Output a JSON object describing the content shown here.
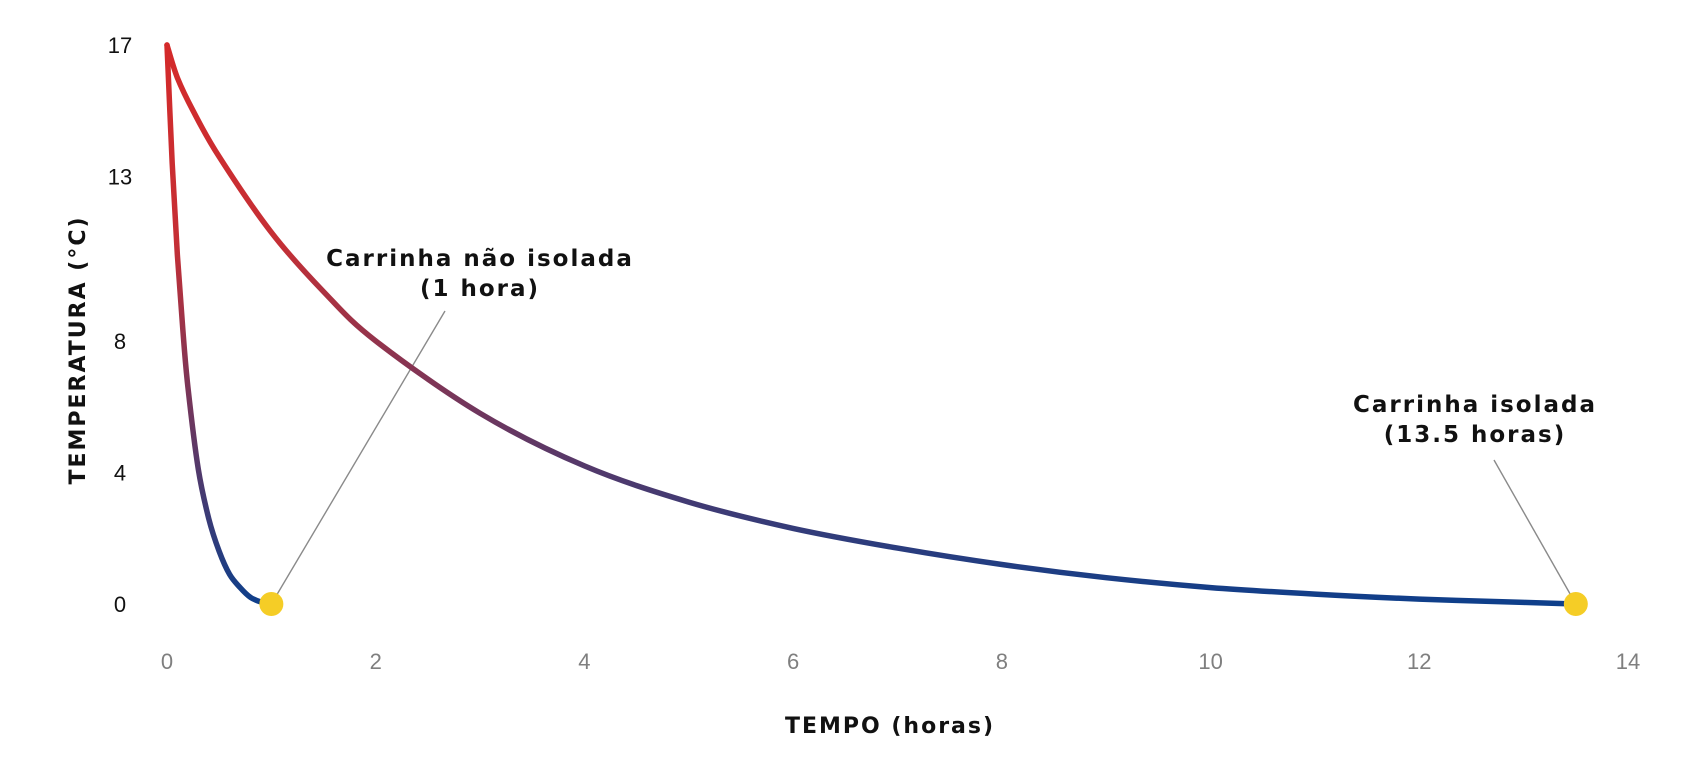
{
  "chart_data": {
    "type": "line",
    "title": "",
    "xlabel": "TEMPO (horas)",
    "ylabel": "TEMPERATURA (°C)",
    "xlim": [
      0,
      14
    ],
    "ylim": [
      0,
      17
    ],
    "x_ticks": [
      "0",
      "2",
      "4",
      "6",
      "8",
      "10",
      "12",
      "14"
    ],
    "y_ticks": [
      "0",
      "4",
      "8",
      "13",
      "17"
    ],
    "grid": false,
    "legend": "none",
    "colors": {
      "hot": "#d42a2a",
      "cold": "#0b3f8c",
      "marker": "#f5cd26",
      "leader": "#8a8a8a"
    },
    "series": [
      {
        "x": [
          0,
          0.05,
          0.1,
          0.15,
          0.2,
          0.3,
          0.4,
          0.5,
          0.6,
          0.7,
          0.8,
          0.9,
          1.0
        ],
        "y": [
          17,
          13.4,
          10.6,
          8.4,
          6.6,
          4.1,
          2.6,
          1.6,
          0.9,
          0.5,
          0.2,
          0.06,
          0
        ]
      },
      {
        "x": [
          0,
          0.1,
          0.25,
          0.5,
          1,
          1.5,
          2,
          3,
          4,
          5,
          6,
          7,
          8,
          9,
          10,
          11,
          12,
          13,
          13.5
        ],
        "y": [
          17,
          16,
          15,
          13.6,
          11.3,
          9.5,
          8.0,
          5.8,
          4.2,
          3.1,
          2.3,
          1.7,
          1.2,
          0.8,
          0.5,
          0.3,
          0.15,
          0.05,
          0
        ]
      }
    ],
    "points": [
      {
        "x": 1.0,
        "y": 0
      },
      {
        "x": 13.5,
        "y": 0
      }
    ],
    "annotations": [
      {
        "lines": [
          "Carrinha não isolada",
          "(1 hora)"
        ],
        "point": 0
      },
      {
        "lines": [
          "Carrinha isolada",
          "(13.5 horas)"
        ],
        "point": 1
      }
    ]
  }
}
